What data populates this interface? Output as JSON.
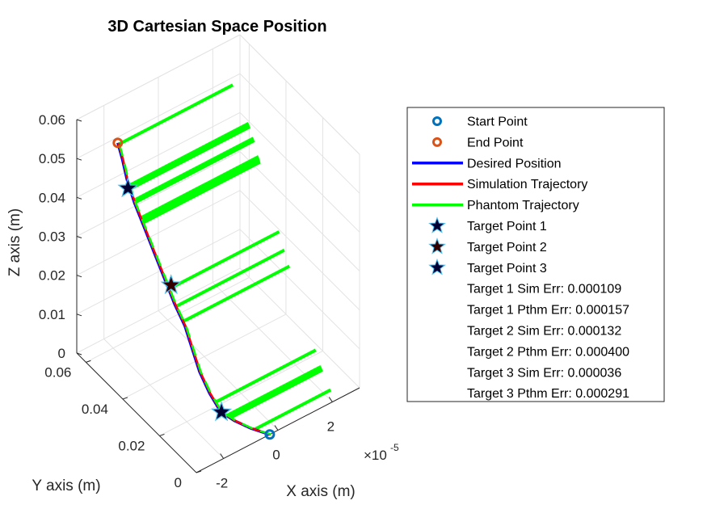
{
  "chart_data": {
    "type": "line3d",
    "title": "3D Cartesian Space Position",
    "xlabel": "X axis (m)",
    "ylabel": "Y axis (m)",
    "zlabel": "Z axis (m)",
    "x_exponent_label": "×10",
    "x_exponent_power": "-5",
    "x_ticks": [
      "-2",
      "0",
      "2"
    ],
    "y_ticks": [
      "0",
      "0.02",
      "0.04",
      "0.06"
    ],
    "z_ticks": [
      "0",
      "0.01",
      "0.02",
      "0.03",
      "0.04",
      "0.05",
      "0.06"
    ],
    "grid": true,
    "legend_position": "right",
    "colors": {
      "start": "#0072BD",
      "end": "#D95319",
      "desired": "#0000FF",
      "simulation": "#FF0000",
      "phantom": "#00FF00",
      "target1": "#000033",
      "target2": "#330000",
      "target3": "#000033",
      "target_edge": "#4DBEEE"
    },
    "legend": [
      {
        "marker": "circle-start",
        "label": "Start Point"
      },
      {
        "marker": "circle-end",
        "label": "End Point"
      },
      {
        "marker": "line-desired",
        "label": "Desired Position"
      },
      {
        "marker": "line-simulation",
        "label": "Simulation Trajectory"
      },
      {
        "marker": "line-phantom",
        "label": "Phantom Trajectory"
      },
      {
        "marker": "star-1",
        "label": "Target Point 1"
      },
      {
        "marker": "star-2",
        "label": "Target Point 2"
      },
      {
        "marker": "star-3",
        "label": "Target Point 3"
      },
      {
        "marker": "none",
        "label": "Target 1 Sim Err: 0.000109"
      },
      {
        "marker": "none",
        "label": "Target 1 Pthm Err: 0.000157"
      },
      {
        "marker": "none",
        "label": "Target 2 Sim Err: 0.000132"
      },
      {
        "marker": "none",
        "label": "Target 2 Pthm Err: 0.000400"
      },
      {
        "marker": "none",
        "label": "Target 3 Sim Err: 0.000036"
      },
      {
        "marker": "none",
        "label": "Target 3 Pthm Err: 0.000291"
      }
    ],
    "trajectory": {
      "comment_units": "x in 1e-5 m, y in m, z in m",
      "x": [
        -0.3,
        -0.8,
        -1.2,
        -1.5,
        -1.7,
        -1.8,
        -1.8,
        -1.8,
        -1.9,
        -2.0,
        -2.1,
        -2.2,
        -2.3,
        -2.3,
        -2.2,
        -2.1
      ],
      "y": [
        0.0,
        0.003,
        0.006,
        0.009,
        0.012,
        0.016,
        0.02,
        0.024,
        0.028,
        0.032,
        0.036,
        0.04,
        0.044,
        0.048,
        0.052,
        0.056
      ],
      "z": [
        0.0,
        0.002,
        0.004,
        0.006,
        0.01,
        0.014,
        0.018,
        0.022,
        0.026,
        0.031,
        0.036,
        0.041,
        0.046,
        0.05,
        0.053,
        0.055
      ]
    },
    "start_point": {
      "x": -0.3,
      "y": 0.0,
      "z": 0.0
    },
    "end_point": {
      "x": -2.1,
      "y": 0.056,
      "z": 0.055
    },
    "targets": [
      {
        "name": "Target Point 1",
        "x": -2.2,
        "y": 0.049,
        "z": 0.047
      },
      {
        "name": "Target Point 2",
        "x": -1.9,
        "y": 0.03,
        "z": 0.03
      },
      {
        "name": "Target Point 3",
        "x": -1.4,
        "y": 0.01,
        "z": 0.005
      }
    ],
    "phantom_spikes": [
      {
        "base_index": 0.8,
        "reach_x": 2.1,
        "repeat": 1
      },
      {
        "base_index": 2.3,
        "reach_x": 2.1,
        "repeat": 6
      },
      {
        "base_index": 3.5,
        "reach_x": 2.1,
        "repeat": 1
      },
      {
        "base_index": 7.2,
        "reach_x": 2.1,
        "repeat": 1
      },
      {
        "base_index": 7.9,
        "reach_x": 2.1,
        "repeat": 1
      },
      {
        "base_index": 8.6,
        "reach_x": 2.1,
        "repeat": 1
      },
      {
        "base_index": 11.2,
        "reach_x": 2.1,
        "repeat": 5
      },
      {
        "base_index": 12.0,
        "reach_x": 2.1,
        "repeat": 3
      },
      {
        "base_index": 12.6,
        "reach_x": 2.1,
        "repeat": 4
      },
      {
        "base_index": 14.9,
        "reach_x": 2.1,
        "repeat": 1
      }
    ]
  }
}
